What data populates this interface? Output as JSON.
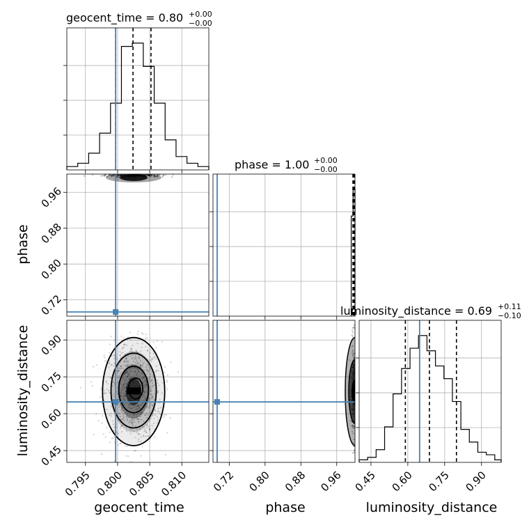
{
  "chart_data": {
    "type": "corner",
    "parameters": [
      "geocent_time",
      "phase",
      "luminosity_distance"
    ],
    "injection": {
      "geocent_time": 0.7997,
      "phase": 0.693,
      "luminosity_distance": 0.648
    },
    "truth_color": "#4682b4",
    "titles": {
      "geocent_time": {
        "name": "geocent_time",
        "median": "0.80",
        "plus": "+0.00",
        "minus": "−0.00"
      },
      "phase": {
        "name": "phase",
        "median": "1.00",
        "plus": "+0.00",
        "minus": "−0.00"
      },
      "luminosity_distance": {
        "name": "luminosity_distance",
        "median": "0.69",
        "plus": "+0.11",
        "minus": "−0.10"
      }
    },
    "axes": {
      "geocent_time": {
        "range": [
          0.7921,
          0.8142
        ],
        "ticks": [
          0.795,
          0.8,
          0.805,
          0.81
        ],
        "tick_labels": [
          "0.795",
          "0.800",
          "0.805",
          "0.810"
        ],
        "label": "geocent_time"
      },
      "phase": {
        "range": [
          0.6837,
          1.0008
        ],
        "ticks": [
          0.72,
          0.8,
          0.88,
          0.96
        ],
        "tick_labels": [
          "0.72",
          "0.80",
          "0.88",
          "0.96"
        ],
        "label": "phase"
      },
      "luminosity_distance": {
        "range": [
          0.402,
          0.98
        ],
        "ticks": [
          0.45,
          0.6,
          0.75,
          0.9
        ],
        "tick_labels": [
          "0.45",
          "0.60",
          "0.75",
          "0.90"
        ],
        "label": "luminosity_distance"
      }
    },
    "hist_geocent_time": {
      "edges": [
        0.7921,
        0.7938,
        0.7955,
        0.7972,
        0.7989,
        0.8006,
        0.8023,
        0.804,
        0.8057,
        0.8074,
        0.8091,
        0.8108,
        0.8125,
        0.8142
      ],
      "counts": [
        1,
        2,
        5,
        11,
        20,
        37,
        38,
        31,
        20,
        9,
        4,
        2,
        1
      ],
      "quantiles": [
        0.7997,
        0.8024,
        0.8052
      ]
    },
    "hist_phase": {
      "edges": [
        0.9924,
        0.9966,
        1.0008
      ],
      "counts": [
        30,
        38
      ],
      "quantiles": [
        0.9962,
        0.9983,
        0.9998
      ]
    },
    "hist_luminosity_distance": {
      "edges": [
        0.402,
        0.4365,
        0.471,
        0.5055,
        0.54,
        0.5745,
        0.609,
        0.6435,
        0.678,
        0.7125,
        0.747,
        0.7815,
        0.816,
        0.8505,
        0.885,
        0.9195,
        0.954,
        0.98
      ],
      "counts": [
        1,
        2,
        5,
        14,
        27,
        37,
        45,
        50,
        44,
        38,
        33,
        24,
        13,
        8,
        4,
        3,
        1
      ],
      "quantiles": [
        0.59,
        0.688,
        0.798
      ]
    },
    "density_geocent_time_luminosity_distance": {
      "center": [
        0.8025,
        0.69
      ],
      "sigma": [
        0.0022,
        0.1
      ],
      "contour_levels": [
        0.4,
        1.3,
        2.4,
        3.3
      ]
    },
    "density_phase_luminosity_distance": {
      "center_phase": 0.9995,
      "sigma_phase": 0.0035,
      "center_dist": 0.69,
      "sigma_dist": 0.1
    }
  }
}
